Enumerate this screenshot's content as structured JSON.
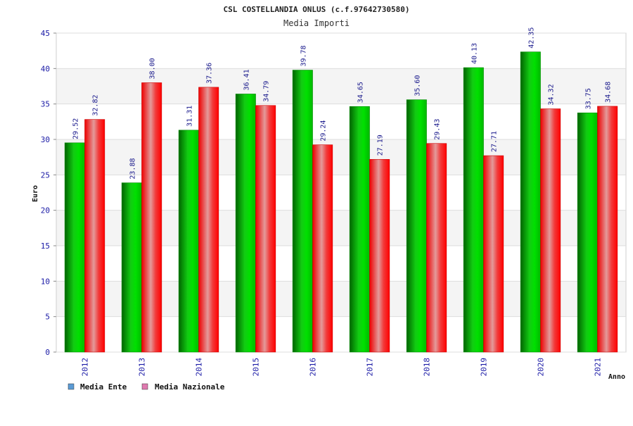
{
  "chart_data": {
    "type": "bar",
    "title": "CSL COSTELLANDIA ONLUS (c.f.97642730580)",
    "subtitle": "Media Importi",
    "xlabel": "Anno",
    "ylabel": "Euro",
    "ylim": [
      0,
      45
    ],
    "yticks": [
      "0",
      "5",
      "10",
      "15",
      "20",
      "25",
      "30",
      "35",
      "40",
      "45"
    ],
    "categories": [
      "2012",
      "2013",
      "2014",
      "2015",
      "2016",
      "2017",
      "2018",
      "2019",
      "2020",
      "2021"
    ],
    "series": [
      {
        "name": "Media Ente",
        "legend_color": "#5b9bd5",
        "values": [
          29.52,
          23.88,
          31.31,
          36.41,
          39.78,
          34.65,
          35.6,
          40.13,
          42.35,
          33.75
        ],
        "labels": [
          "29.52",
          "23.88",
          "31.31",
          "36.41",
          "39.78",
          "34.65",
          "35.60",
          "40.13",
          "42.35",
          "33.75"
        ]
      },
      {
        "name": "Media Nazionale",
        "legend_color": "#e07ab0",
        "values": [
          32.82,
          38.0,
          37.36,
          34.79,
          29.24,
          27.19,
          29.43,
          27.71,
          34.32,
          34.68
        ],
        "labels": [
          "32.82",
          "38.00",
          "37.36",
          "34.79",
          "29.24",
          "27.19",
          "29.43",
          "27.71",
          "34.32",
          "34.68"
        ]
      }
    ],
    "grid": true,
    "legend_position": "bottom-left"
  }
}
